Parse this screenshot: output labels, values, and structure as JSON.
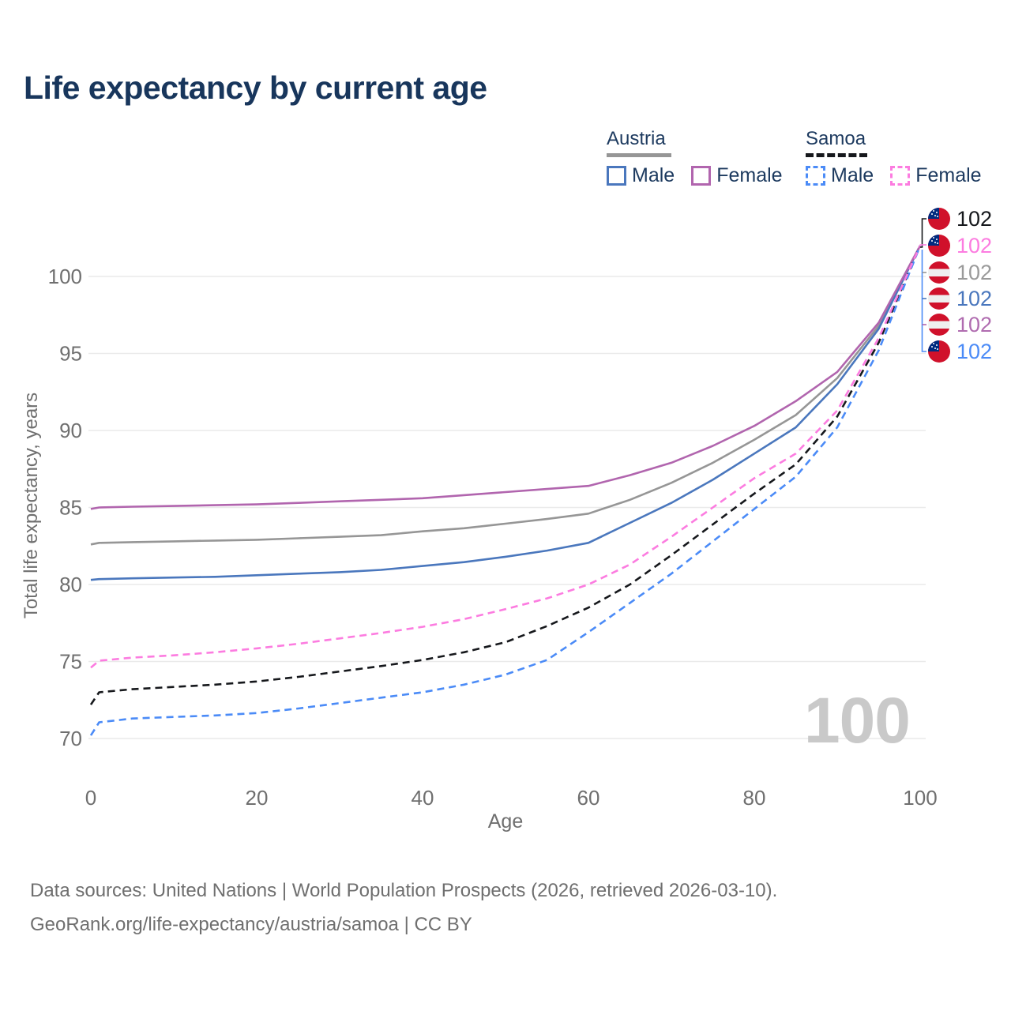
{
  "header": {
    "title": "Life expectancy by current age"
  },
  "legend": {
    "austria": {
      "label": "Austria",
      "male_label": "Male",
      "female_label": "Female"
    },
    "samoa": {
      "label": "Samoa",
      "male_label": "Male",
      "female_label": "Female"
    }
  },
  "colors": {
    "title_text": "#18365c",
    "legend_text": "#1d3a5f",
    "axis_text": "#6f6f6f",
    "grid": "#eaeaea",
    "watermark": "#c9c9c9",
    "austria_both": "#969696",
    "austria_male": "#4a77bd",
    "austria_female": "#b165ae",
    "samoa_both": "#16181c",
    "samoa_male": "#4b8bf7",
    "samoa_female": "#fc7ce0",
    "flag_red": "#d0112b",
    "flag_navy": "#002b7f"
  },
  "chart_data": {
    "type": "line",
    "title": "Life expectancy by current age",
    "xlabel": "Age",
    "ylabel": "Total life expectancy, years",
    "xlim": [
      0,
      100
    ],
    "ylim": [
      68.5,
      103
    ],
    "x_ticks": [
      0,
      20,
      40,
      60,
      80,
      100
    ],
    "y_ticks": [
      70,
      75,
      80,
      85,
      90,
      95,
      100
    ],
    "grid": "horizontal-only",
    "legend_position": "top-right",
    "watermark": "100",
    "ages": [
      0,
      1,
      5,
      10,
      15,
      20,
      25,
      30,
      35,
      40,
      45,
      50,
      55,
      60,
      65,
      70,
      75,
      80,
      85,
      90,
      95,
      100
    ],
    "series": [
      {
        "name": "Austria",
        "country": "Austria",
        "sex": "both",
        "style": "solid",
        "color": "#969696",
        "values": [
          82.6,
          82.7,
          82.75,
          82.8,
          82.85,
          82.9,
          83.0,
          83.1,
          83.2,
          83.45,
          83.65,
          83.95,
          84.25,
          84.6,
          85.5,
          86.6,
          87.9,
          89.4,
          91.0,
          93.4,
          96.8,
          102
        ]
      },
      {
        "name": "Austria Male",
        "country": "Austria",
        "sex": "male",
        "style": "solid",
        "color": "#4a77bd",
        "values": [
          80.3,
          80.35,
          80.4,
          80.45,
          80.5,
          80.6,
          80.7,
          80.8,
          80.95,
          81.2,
          81.45,
          81.8,
          82.2,
          82.7,
          84.0,
          85.3,
          86.8,
          88.5,
          90.2,
          93.0,
          96.6,
          102
        ]
      },
      {
        "name": "Austria Female",
        "country": "Austria",
        "sex": "female",
        "style": "solid",
        "color": "#b165ae",
        "values": [
          84.9,
          85.0,
          85.05,
          85.1,
          85.15,
          85.2,
          85.3,
          85.4,
          85.5,
          85.6,
          85.8,
          86.0,
          86.2,
          86.4,
          87.1,
          87.9,
          89.0,
          90.3,
          91.9,
          93.8,
          97.0,
          102
        ]
      },
      {
        "name": "Samoa",
        "country": "Samoa",
        "sex": "both",
        "style": "dashed",
        "color": "#16181c",
        "values": [
          72.2,
          73.0,
          73.2,
          73.35,
          73.5,
          73.7,
          74.0,
          74.35,
          74.7,
          75.1,
          75.6,
          76.25,
          77.3,
          78.5,
          80.0,
          81.9,
          83.9,
          85.9,
          87.8,
          90.9,
          95.7,
          102
        ]
      },
      {
        "name": "Samoa Male",
        "country": "Samoa",
        "sex": "male",
        "style": "dashed",
        "color": "#4b8bf7",
        "values": [
          70.2,
          71.05,
          71.3,
          71.4,
          71.5,
          71.65,
          71.95,
          72.3,
          72.65,
          73.0,
          73.5,
          74.15,
          75.1,
          76.9,
          78.8,
          80.7,
          82.8,
          84.9,
          87.0,
          90.2,
          95.2,
          102
        ]
      },
      {
        "name": "Samoa Female",
        "country": "Samoa",
        "sex": "female",
        "style": "dashed",
        "color": "#fc7ce0",
        "values": [
          74.6,
          75.05,
          75.25,
          75.4,
          75.6,
          75.85,
          76.15,
          76.5,
          76.85,
          77.25,
          77.75,
          78.4,
          79.1,
          80.0,
          81.3,
          83.1,
          85.0,
          86.9,
          88.5,
          91.3,
          96.0,
          102
        ]
      }
    ],
    "end_labels": [
      {
        "value": "102",
        "flag": "samoa",
        "series": "Samoa",
        "color": "#16181c"
      },
      {
        "value": "102",
        "flag": "samoa",
        "series": "Samoa Female",
        "color": "#fc7ce0"
      },
      {
        "value": "102",
        "flag": "austria",
        "series": "Austria",
        "color": "#9a9a9a"
      },
      {
        "value": "102",
        "flag": "austria",
        "series": "Austria Male",
        "color": "#4a77bd"
      },
      {
        "value": "102",
        "flag": "austria",
        "series": "Austria Female",
        "color": "#b06cb0"
      },
      {
        "value": "102",
        "flag": "samoa",
        "series": "Samoa Male",
        "color": "#4b8bf7"
      }
    ]
  },
  "footer": {
    "line1": "Data sources: United Nations | World Population Prospects (2026, retrieved 2026-03-10).",
    "line2": "GeoRank.org/life-expectancy/austria/samoa | CC BY"
  }
}
